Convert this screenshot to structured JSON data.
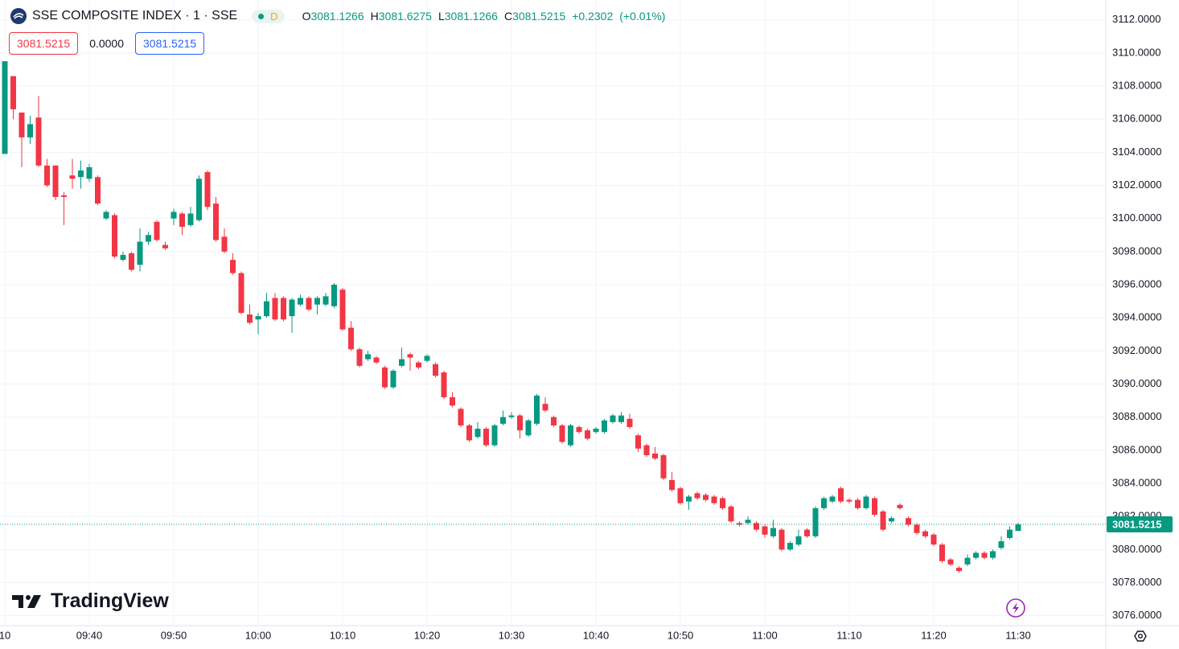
{
  "header": {
    "symbol": "SSE COMPOSITE INDEX · 1 · SSE",
    "market_status": "D",
    "ohlc": [
      {
        "key": "O",
        "value": 3081.1266
      },
      {
        "key": "H",
        "value": 3081.6275
      },
      {
        "key": "L",
        "value": 3081.1266
      },
      {
        "key": "C",
        "value": 3081.5215
      }
    ],
    "change": "+0.2302",
    "change_percent": "(+0.01%)",
    "sell_price": 3081.5215,
    "spread": "0.0000",
    "buy_price": 3081.5215
  },
  "watermark": "TradingView",
  "chart_data": {
    "type": "candlestick",
    "up_color": "#089981",
    "down_color": "#f23645",
    "grid": true,
    "ylim": [
      3075.4,
      3113.2
    ],
    "yticks": [
      {
        "value": 3076,
        "label": "3076.0000"
      },
      {
        "value": 3078,
        "label": "3078.0000"
      },
      {
        "value": 3080,
        "label": "3080.0000"
      },
      {
        "value": 3082,
        "label": "3082.0000"
      },
      {
        "value": 3084,
        "label": "3084.0000"
      },
      {
        "value": 3086,
        "label": "3086.0000"
      },
      {
        "value": 3088,
        "label": "3088.0000"
      },
      {
        "value": 3090,
        "label": "3090.0000"
      },
      {
        "value": 3092,
        "label": "3092.0000"
      },
      {
        "value": 3094,
        "label": "3094.0000"
      },
      {
        "value": 3096,
        "label": "3096.0000"
      },
      {
        "value": 3098,
        "label": "3098.0000"
      },
      {
        "value": 3100,
        "label": "3100.0000"
      },
      {
        "value": 3102,
        "label": "3102.0000"
      },
      {
        "value": 3104,
        "label": "3104.0000"
      },
      {
        "value": 3106,
        "label": "3106.0000"
      },
      {
        "value": 3108,
        "label": "3108.0000"
      },
      {
        "value": 3110,
        "label": "3110.0000"
      },
      {
        "value": 3112,
        "label": "3112.0000"
      }
    ],
    "xticks": [
      "10",
      "09:40",
      "09:50",
      "10:00",
      "10:10",
      "10:20",
      "10:30",
      "10:40",
      "10:50",
      "11:00",
      "11:10",
      "11:20",
      "11:30"
    ],
    "last_price": 3081.5215,
    "open": [
      3103.9,
      3108.6,
      3106.4,
      3104.9,
      3106.1,
      3103.2,
      3103.2,
      3101.4,
      3102.6,
      3102.5,
      3102.4,
      3102.5,
      3100.0,
      3100.2,
      3097.5,
      3097.9,
      3097.2,
      3098.6,
      3099.8,
      3098.4,
      3100.0,
      3100.3,
      3099.6,
      3099.9,
      3102.8,
      3100.9,
      3098.9,
      3097.5,
      3096.7,
      3094.2,
      3093.9,
      3094.1,
      3095.2,
      3095.2,
      3094.1,
      3094.8,
      3095.2,
      3094.8,
      3094.8,
      3094.7,
      3095.7,
      3093.4,
      3092.1,
      3091.5,
      3091.6,
      3091.0,
      3089.8,
      3091.1,
      3091.8,
      3091.3,
      3091.4,
      3091.2,
      3090.7,
      3089.2,
      3088.5,
      3087.5,
      3086.8,
      3087.3,
      3086.3,
      3087.6,
      3088.0,
      3088.1,
      3086.9,
      3087.6,
      3088.8,
      3088.0,
      3087.5,
      3086.3,
      3087.4,
      3087.2,
      3087.1,
      3087.1,
      3087.7,
      3087.7,
      3087.9,
      3086.9,
      3086.3,
      3085.8,
      3085.7,
      3084.2,
      3083.7,
      3082.9,
      3083.4,
      3083.3,
      3083.2,
      3083.1,
      3082.6,
      3081.6,
      3081.6,
      3081.6,
      3081.4,
      3080.8,
      3081.2,
      3080.0,
      3080.3,
      3081.2,
      3080.8,
      3082.5,
      3082.9,
      3083.7,
      3083.0,
      3083.0,
      3082.5,
      3083.1,
      3082.3,
      3081.7,
      3082.7,
      3081.9,
      3081.5,
      3081.1,
      3080.9,
      3080.3,
      3079.4,
      3078.9,
      3079.1,
      3079.5,
      3079.8,
      3079.5,
      3080.1,
      3080.7,
      3081.1266
    ],
    "high": [
      3109.5,
      3108.6,
      3106.4,
      3106.2,
      3107.4,
      3103.6,
      3103.2,
      3101.6,
      3103.6,
      3103.5,
      3103.3,
      3102.6,
      3100.5,
      3100.3,
      3098.0,
      3098.0,
      3099.4,
      3099.2,
      3099.9,
      3098.6,
      3100.6,
      3100.4,
      3100.7,
      3102.6,
      3102.9,
      3101.3,
      3099.4,
      3097.9,
      3096.8,
      3094.8,
      3094.3,
      3095.5,
      3095.5,
      3095.3,
      3095.2,
      3095.4,
      3095.3,
      3095.3,
      3095.5,
      3096.1,
      3095.8,
      3093.8,
      3092.2,
      3092.0,
      3091.7,
      3091.1,
      3090.9,
      3092.2,
      3091.9,
      3091.4,
      3091.8,
      3091.3,
      3090.8,
      3089.5,
      3088.6,
      3087.6,
      3087.7,
      3087.4,
      3087.6,
      3088.4,
      3088.3,
      3088.2,
      3087.9,
      3089.4,
      3089.2,
      3088.1,
      3087.6,
      3087.6,
      3087.5,
      3087.3,
      3087.4,
      3087.9,
      3088.2,
      3088.3,
      3088.2,
      3087.0,
      3086.4,
      3086.2,
      3085.8,
      3084.7,
      3083.8,
      3083.3,
      3083.5,
      3083.4,
      3083.3,
      3083.2,
      3082.7,
      3081.7,
      3082.0,
      3081.7,
      3081.5,
      3081.8,
      3081.3,
      3080.5,
      3081.2,
      3081.3,
      3082.6,
      3083.2,
      3083.3,
      3083.8,
      3083.1,
      3083.1,
      3083.3,
      3083.2,
      3082.4,
      3082.0,
      3082.8,
      3082.0,
      3081.6,
      3081.2,
      3081.0,
      3080.4,
      3079.5,
      3079.0,
      3079.7,
      3079.9,
      3079.9,
      3080.0,
      3080.8,
      3081.4,
      3081.6275
    ],
    "low": [
      3103.9,
      3106.0,
      3103.1,
      3104.5,
      3103.1,
      3101.9,
      3101.1,
      3099.6,
      3101.8,
      3101.8,
      3102.2,
      3100.8,
      3099.9,
      3097.6,
      3097.4,
      3096.8,
      3096.8,
      3098.4,
      3098.6,
      3098.1,
      3099.6,
      3099.0,
      3099.5,
      3099.8,
      3100.5,
      3098.6,
      3097.9,
      3096.6,
      3094.2,
      3093.6,
      3093.0,
      3094.0,
      3093.8,
      3093.8,
      3093.1,
      3094.7,
      3094.4,
      3094.2,
      3094.7,
      3094.6,
      3093.2,
      3092.0,
      3091.0,
      3091.4,
      3091.2,
      3089.7,
      3089.7,
      3091.0,
      3090.8,
      3090.9,
      3091.3,
      3090.4,
      3089.1,
      3088.6,
      3087.4,
      3086.5,
      3086.7,
      3086.2,
      3086.2,
      3087.5,
      3087.9,
      3086.7,
      3086.8,
      3087.5,
      3088.3,
      3087.4,
      3086.4,
      3086.2,
      3087.0,
      3086.6,
      3087.0,
      3087.0,
      3087.6,
      3087.6,
      3087.3,
      3085.9,
      3085.6,
      3085.4,
      3084.2,
      3083.5,
      3082.7,
      3082.4,
      3083.0,
      3082.9,
      3082.7,
      3082.4,
      3081.6,
      3081.4,
      3081.5,
      3081.1,
      3080.7,
      3080.7,
      3079.9,
      3079.9,
      3080.2,
      3080.7,
      3080.7,
      3082.4,
      3082.8,
      3082.8,
      3082.8,
      3082.4,
      3082.4,
      3082.0,
      3081.1,
      3081.6,
      3082.4,
      3081.4,
      3080.9,
      3080.7,
      3080.2,
      3079.2,
      3079.0,
      3078.6,
      3079.0,
      3079.4,
      3079.4,
      3079.4,
      3080.0,
      3080.6,
      3081.1266
    ],
    "close": [
      3109.5,
      3106.6,
      3104.9,
      3105.7,
      3103.2,
      3102.0,
      3101.3,
      3101.3,
      3102.4,
      3102.9,
      3103.1,
      3100.9,
      3100.4,
      3097.7,
      3097.8,
      3096.9,
      3098.6,
      3099.0,
      3098.7,
      3098.2,
      3100.4,
      3099.5,
      3100.3,
      3102.4,
      3100.7,
      3098.7,
      3098.0,
      3096.7,
      3094.3,
      3093.7,
      3094.1,
      3095.0,
      3093.9,
      3093.9,
      3095.1,
      3095.2,
      3094.5,
      3095.2,
      3095.3,
      3096.0,
      3093.3,
      3092.1,
      3091.1,
      3091.8,
      3091.3,
      3089.8,
      3090.8,
      3091.5,
      3091.6,
      3091.0,
      3091.7,
      3090.5,
      3089.2,
      3088.7,
      3087.5,
      3086.6,
      3087.3,
      3086.3,
      3087.5,
      3088.0,
      3088.1,
      3087.2,
      3087.8,
      3089.3,
      3088.4,
      3087.5,
      3086.5,
      3087.5,
      3087.1,
      3086.7,
      3087.3,
      3087.8,
      3088.1,
      3088.1,
      3087.4,
      3086.1,
      3085.7,
      3085.5,
      3084.3,
      3083.6,
      3082.8,
      3083.2,
      3083.1,
      3083.0,
      3082.8,
      3082.5,
      3081.7,
      3081.5,
      3081.8,
      3081.2,
      3080.9,
      3081.3,
      3080.0,
      3080.4,
      3080.8,
      3080.8,
      3082.5,
      3083.1,
      3083.2,
      3082.9,
      3082.9,
      3082.5,
      3083.2,
      3082.1,
      3081.2,
      3081.9,
      3082.5,
      3081.5,
      3081.0,
      3080.8,
      3080.3,
      3079.3,
      3079.1,
      3078.7,
      3079.5,
      3079.8,
      3079.5,
      3079.9,
      3080.5,
      3081.2,
      3081.5215
    ]
  }
}
